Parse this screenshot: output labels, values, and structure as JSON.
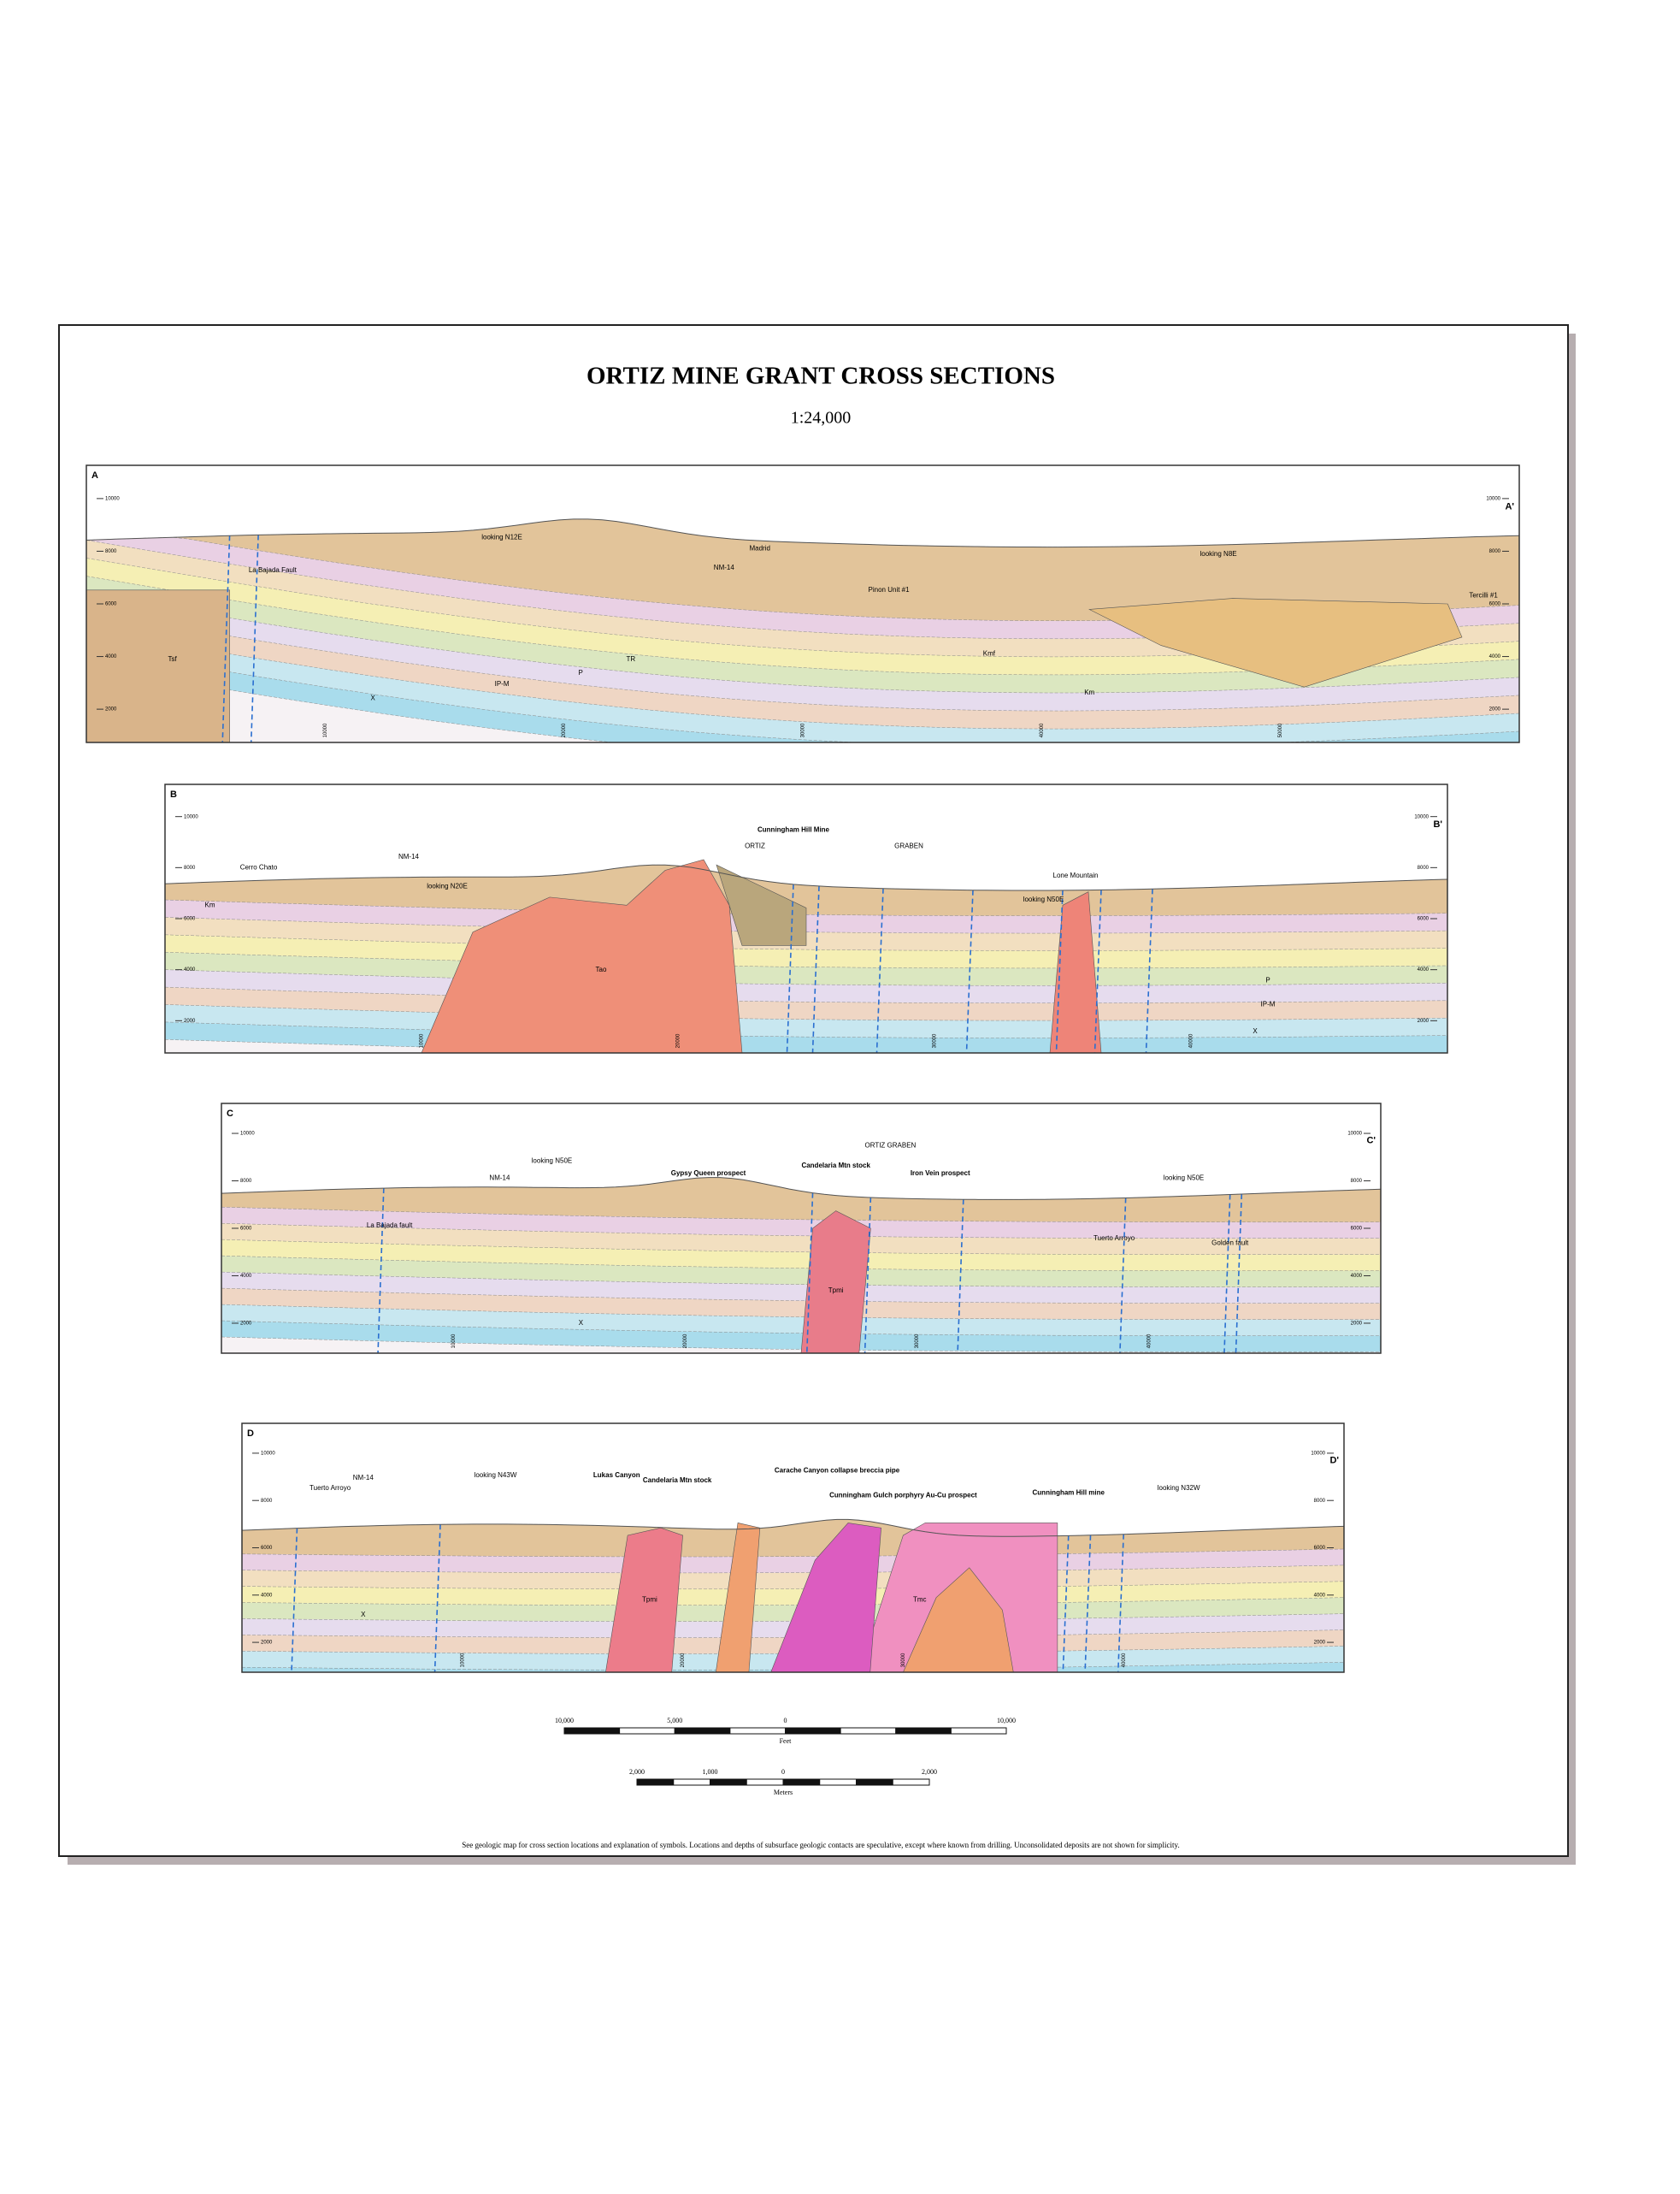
{
  "title": "ORTIZ MINE GRANT CROSS SECTIONS",
  "scale": "1:24,000",
  "sections": [
    {
      "label_left": "A",
      "label_right": "A'",
      "elevations": [
        10000,
        8000,
        6000,
        4000,
        2000
      ],
      "distances": [
        10000,
        20000,
        30000,
        40000,
        50000
      ],
      "annotations": [
        "looking N12E",
        "La Bajada Fault",
        "NM-14",
        "Madrid",
        "Pinon Unit #1",
        "looking N8E",
        "Tercilli #1",
        "Tsf",
        "Kmf",
        "Km",
        "TR",
        "P",
        "IP-M",
        "X"
      ]
    },
    {
      "label_left": "B",
      "label_right": "B'",
      "elevations": [
        10000,
        8000,
        6000,
        4000,
        2000
      ],
      "distances": [
        10000,
        20000,
        30000,
        40000
      ],
      "annotations": [
        "Cerro Chato",
        "NM-14",
        "looking N20E",
        "ORTIZ",
        "GRABEN",
        "Cunningham Hill Mine",
        "Lone Mountain",
        "looking N50E",
        "Tao",
        "Km",
        "P",
        "IP-M",
        "X"
      ]
    },
    {
      "label_left": "C",
      "label_right": "C'",
      "elevations": [
        10000,
        8000,
        6000,
        4000,
        2000
      ],
      "distances": [
        10000,
        20000,
        30000,
        40000
      ],
      "annotations": [
        "looking N50E",
        "NM-14",
        "La Bajada fault",
        "Gypsy Queen prospect",
        "Candelaria Mtn stock",
        "ORTIZ GRABEN",
        "Iron Vein prospect",
        "looking N50E",
        "Tuerto Arroyo",
        "Golden fault",
        "Tpmi",
        "X"
      ]
    },
    {
      "label_left": "D",
      "label_right": "D'",
      "elevations": [
        10000,
        8000,
        6000,
        4000,
        2000
      ],
      "distances": [
        10000,
        20000,
        30000,
        40000
      ],
      "annotations": [
        "Tuerto Arroyo",
        "NM-14",
        "looking N43W",
        "Lukas Canyon",
        "Candelaria Mtn stock",
        "Carache Canyon collapse breccia pipe",
        "Cunningham Gulch porphyry Au-Cu prospect",
        "Cunningham Hill mine",
        "looking N32W",
        "Tpmi",
        "Tmc",
        "X"
      ]
    }
  ],
  "scale_bar_feet": {
    "labels": [
      "10,000",
      "5,000",
      "0",
      "10,000"
    ],
    "unit": "Feet"
  },
  "scale_bar_meters": {
    "labels": [
      "2,000",
      "1,000",
      "0",
      "2,000"
    ],
    "unit": "Meters"
  },
  "footnote": "See geologic map for cross section locations and explanation of symbols.  Locations and depths of subsurface geologic contacts are speculative, except where known from drilling.  Unconsolidated deposits are not shown for simplicity."
}
